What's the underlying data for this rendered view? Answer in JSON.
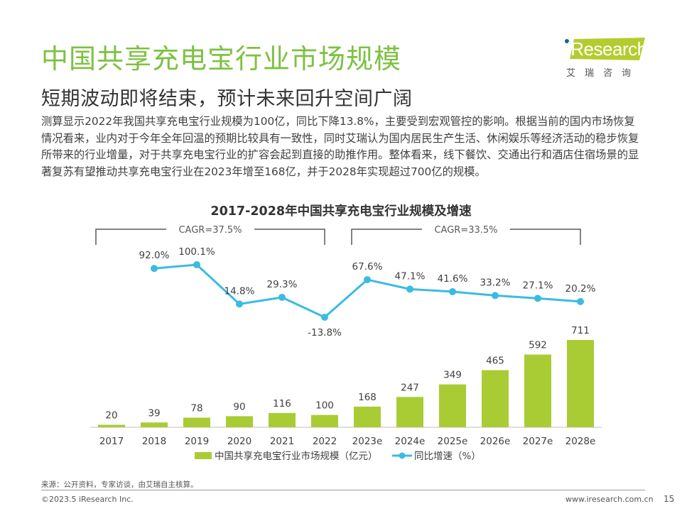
{
  "header": {
    "title": "中国共享充电宝行业市场规模",
    "subtitle": "短期波动即将结束，预计未来回升空间广阔"
  },
  "logo": {
    "brand": "Research",
    "brand_prefix": "i",
    "cn_name": "艾瑞咨询",
    "brand_color": "#b5cc2f"
  },
  "body_text": "测算显示2022年我国共享充电宝行业规模为100亿，同比下降13.8%，主要受到宏观管控的影响。根据当前的国内市场恢复情况看来，业内对于今年全年回温的预期比较具有一致性，同时艾瑞认为国内居民生产生活、休闲娱乐等经济活动的稳步恢复所带来的行业增量，对于共享充电宝行业的扩容会起到直接的助推作用。整体看来，线下餐饮、交通出行和酒店住宿场景的显著复苏有望推动共享充电宝行业在2023年增至168亿，并于2028年实现超过700亿的规模。",
  "chart_data": {
    "type": "bar+line",
    "title": "2017-2028年中国共享充电宝行业规模及增速",
    "categories": [
      "2017",
      "2018",
      "2019",
      "2020",
      "2021",
      "2022",
      "2023e",
      "2024e",
      "2025e",
      "2026e",
      "2027e",
      "2028e"
    ],
    "series": [
      {
        "name": "中国共享充电宝行业市场规模（亿元）",
        "type": "bar",
        "color": "#a9cc35",
        "values": [
          20,
          39,
          78,
          90,
          116,
          100,
          168,
          247,
          349,
          465,
          592,
          711
        ],
        "labels": [
          "20",
          "39",
          "78",
          "90",
          "116",
          "100",
          "168",
          "247",
          "349",
          "465",
          "592",
          "711"
        ]
      },
      {
        "name": "同比增速（%）",
        "type": "line",
        "color": "#3bbbe3",
        "values": [
          null,
          92.0,
          100.1,
          14.8,
          29.3,
          -13.8,
          67.6,
          47.1,
          41.6,
          33.2,
          27.1,
          20.2
        ],
        "labels": [
          "",
          "92.0%",
          "100.1%",
          "14.8%",
          "29.3%",
          "-13.8%",
          "67.6%",
          "47.1%",
          "41.6%",
          "33.2%",
          "27.1%",
          "20.2%"
        ]
      }
    ],
    "annotations": [
      {
        "text": "CAGR=37.5%",
        "from": "2017",
        "to": "2022"
      },
      {
        "text": "CAGR=33.5%",
        "from": "2023e",
        "to": "2028e"
      }
    ],
    "legend_position": "bottom",
    "grid": false,
    "bar_ylim": [
      0,
      711
    ],
    "line_ylim": [
      -13.8,
      100.1
    ]
  },
  "footer": {
    "source": "来源：公开资料，专家访谈，由艾瑞自主核算。",
    "copyright": "©2023.5 iResearch Inc.",
    "website": "www.iresearch.com.cn",
    "page": "15"
  }
}
